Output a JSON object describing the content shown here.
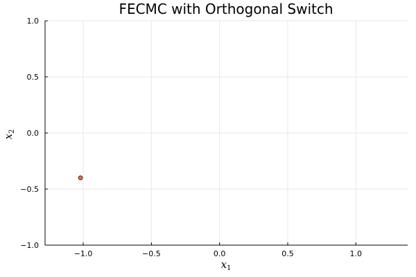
{
  "chart_data": {
    "type": "scatter",
    "title": "FECMC with Orthogonal Switch",
    "xlabel": {
      "base": "x",
      "sub": "1"
    },
    "ylabel": {
      "base": "x",
      "sub": "2"
    },
    "xlim": [
      -1.28,
      1.38
    ],
    "ylim": [
      -1.0,
      1.0
    ],
    "xticks": [
      -1.0,
      -0.5,
      0.0,
      0.5,
      1.0
    ],
    "yticks": [
      -1.0,
      -0.5,
      0.0,
      0.5,
      1.0
    ],
    "xtick_labels": [
      "−1.0",
      "−0.5",
      "0.0",
      "0.5",
      "1.0"
    ],
    "ytick_labels": [
      "−1.0",
      "−0.5",
      "0.0",
      "0.5",
      "1.0"
    ],
    "grid": true,
    "points": [
      {
        "x": -1.02,
        "y": -0.4
      }
    ],
    "point_color": "#e26f46",
    "point_edge_color": "#3a1a0e"
  }
}
